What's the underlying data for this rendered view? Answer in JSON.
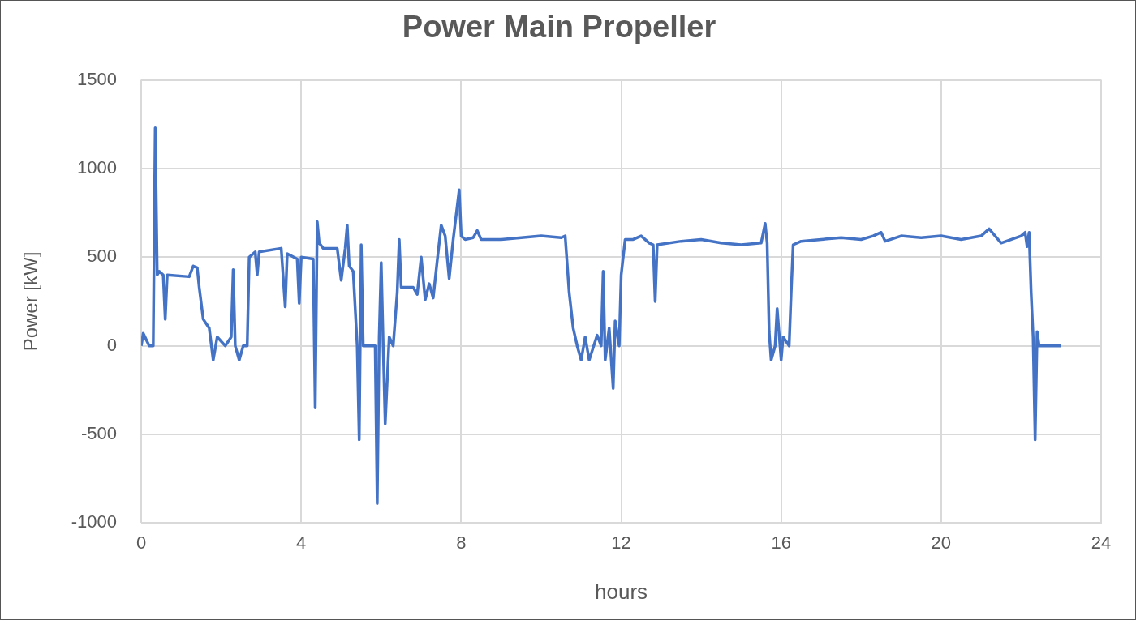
{
  "chart_data": {
    "type": "line",
    "title": "Power Main Propeller",
    "xlabel": "hours",
    "ylabel": "Power [kW]",
    "xlim": [
      0,
      24
    ],
    "xticks": [
      0,
      4,
      8,
      12,
      16,
      20,
      24
    ],
    "ylim": [
      -1000,
      1500
    ],
    "yticks": [
      -1000,
      -500,
      0,
      500,
      1000,
      1500
    ],
    "grid": true,
    "legend": false,
    "marker": "none",
    "line_style": "solid",
    "series": [
      {
        "color": "#4472c4",
        "x": [
          0,
          0.05,
          0.2,
          0.3,
          0.35,
          0.4,
          0.45,
          0.55,
          0.6,
          0.65,
          1.2,
          1.3,
          1.4,
          1.45,
          1.55,
          1.7,
          1.8,
          1.9,
          2.1,
          2.25,
          2.3,
          2.35,
          2.45,
          2.55,
          2.65,
          2.7,
          2.85,
          2.9,
          2.95,
          3.5,
          3.6,
          3.65,
          3.9,
          3.95,
          4.0,
          4.3,
          4.35,
          4.4,
          4.45,
          4.55,
          4.9,
          5.0,
          5.1,
          5.15,
          5.2,
          5.3,
          5.4,
          5.45,
          5.5,
          5.55,
          5.85,
          5.9,
          5.95,
          6.0,
          6.05,
          6.1,
          6.2,
          6.3,
          6.4,
          6.45,
          6.5,
          6.8,
          6.9,
          7.0,
          7.1,
          7.2,
          7.3,
          7.4,
          7.5,
          7.6,
          7.7,
          7.8,
          7.95,
          8.0,
          8.1,
          8.3,
          8.4,
          8.5,
          9,
          9.5,
          10,
          10.5,
          10.6,
          10.7,
          10.8,
          10.9,
          11.0,
          11.1,
          11.2,
          11.4,
          11.5,
          11.55,
          11.6,
          11.7,
          11.8,
          11.85,
          11.95,
          12.0,
          12.1,
          12.3,
          12.5,
          12.7,
          12.8,
          12.85,
          12.9,
          13.5,
          14,
          14.5,
          15,
          15.5,
          15.6,
          15.65,
          15.7,
          15.75,
          15.85,
          15.9,
          16.0,
          16.05,
          16.2,
          16.25,
          16.3,
          16.5,
          17,
          17.5,
          18,
          18.3,
          18.5,
          18.6,
          19,
          19.5,
          20,
          20.5,
          21,
          21.2,
          21.5,
          22,
          22.1,
          22.15,
          22.2,
          22.25,
          22.3,
          22.35,
          22.4,
          22.45,
          23.0
        ],
        "values": [
          0,
          70,
          0,
          0,
          1230,
          400,
          420,
          400,
          150,
          400,
          390,
          450,
          440,
          330,
          150,
          100,
          -80,
          50,
          0,
          50,
          430,
          0,
          -80,
          0,
          0,
          500,
          530,
          400,
          530,
          550,
          220,
          520,
          490,
          240,
          500,
          490,
          -350,
          700,
          580,
          550,
          550,
          370,
          550,
          680,
          450,
          420,
          0,
          -530,
          570,
          0,
          0,
          -890,
          50,
          470,
          0,
          -440,
          50,
          0,
          300,
          600,
          330,
          330,
          290,
          500,
          260,
          350,
          270,
          480,
          680,
          620,
          380,
          600,
          880,
          620,
          600,
          610,
          650,
          600,
          600,
          610,
          620,
          610,
          620,
          300,
          100,
          0,
          -80,
          50,
          -80,
          60,
          0,
          420,
          -80,
          100,
          -240,
          140,
          0,
          400,
          600,
          600,
          620,
          580,
          570,
          250,
          570,
          590,
          600,
          580,
          570,
          580,
          690,
          580,
          80,
          -80,
          0,
          210,
          -80,
          50,
          0,
          300,
          570,
          590,
          600,
          610,
          600,
          620,
          640,
          590,
          620,
          610,
          620,
          600,
          620,
          660,
          580,
          620,
          640,
          560,
          640,
          300,
          50,
          -530,
          80,
          0,
          0
        ]
      }
    ]
  }
}
